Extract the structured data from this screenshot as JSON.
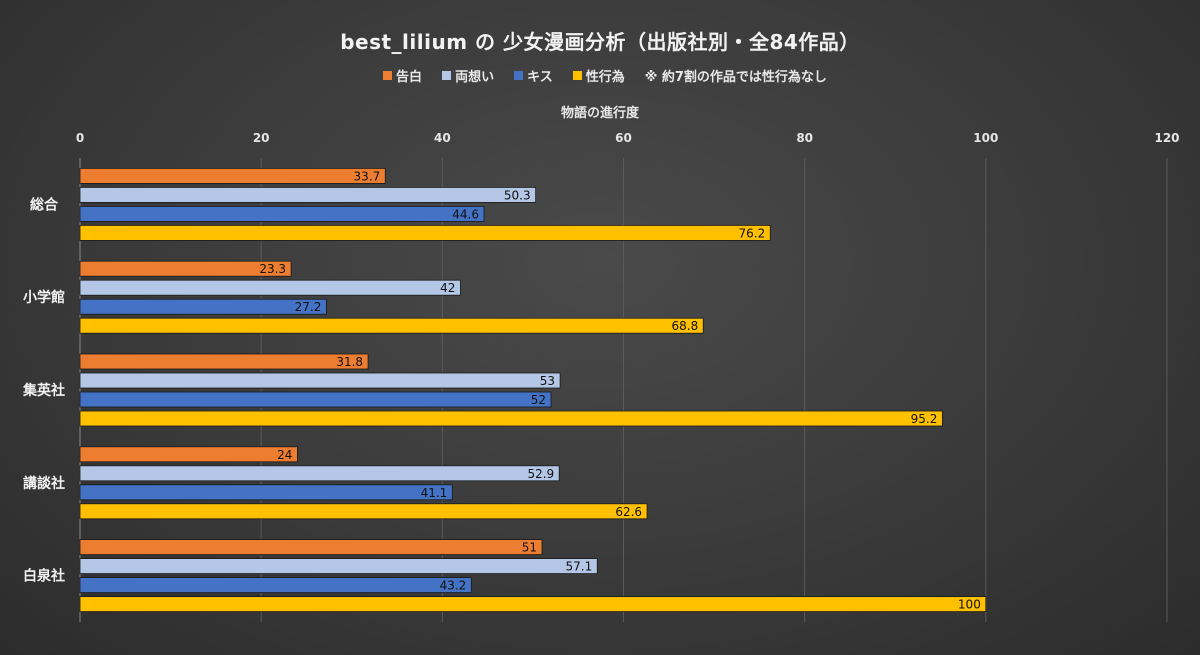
{
  "chart_data": {
    "type": "bar",
    "orientation": "horizontal",
    "title": "best_lilium の 少女漫画分析（出版社別・全84作品）",
    "xlabel": "物語の進行度",
    "xlim": [
      0,
      120
    ],
    "xticks": [
      0,
      20,
      40,
      60,
      80,
      100,
      120
    ],
    "grid": true,
    "legend_position": "top",
    "legend_note": "※ 約7割の作品では性行為なし",
    "categories": [
      "総合",
      "小学館",
      "集英社",
      "講談社",
      "白泉社"
    ],
    "series": [
      {
        "name": "告白",
        "color": "#ED7D31",
        "values": [
          33.7,
          23.3,
          31.8,
          24,
          51
        ]
      },
      {
        "name": "両想い",
        "color": "#B4C7E7",
        "values": [
          50.3,
          42,
          53,
          52.9,
          57.1
        ]
      },
      {
        "name": "キス",
        "color": "#4472C4",
        "values": [
          44.6,
          27.2,
          52,
          41.1,
          43.2
        ]
      },
      {
        "name": "性行為",
        "color": "#FFC000",
        "values": [
          76.2,
          68.8,
          95.2,
          62.6,
          100
        ]
      }
    ]
  }
}
